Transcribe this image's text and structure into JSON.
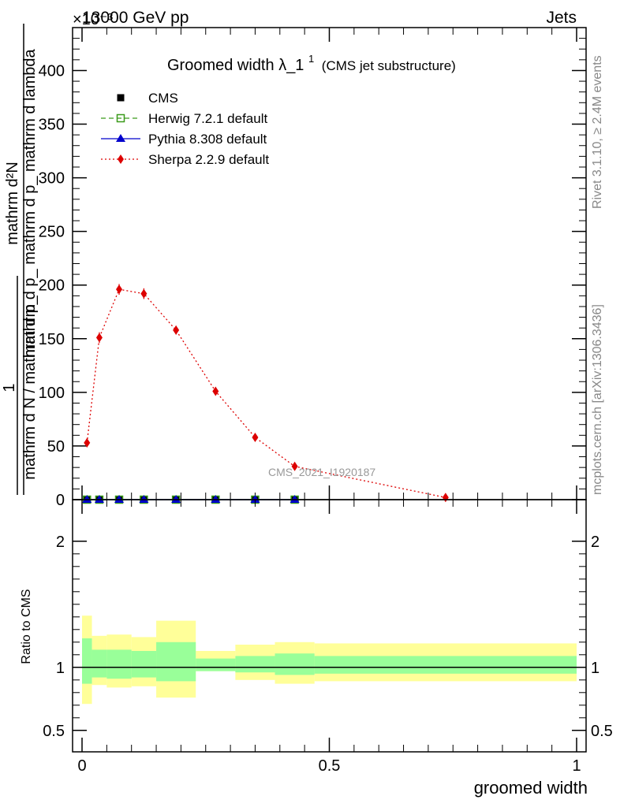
{
  "header": {
    "energy_label": "13000 GeV pp",
    "category_label": "Jets",
    "exponent_label": "×10⁻³"
  },
  "side": {
    "rivet_label": "Rivet 3.1.10, ≥ 2.4M events",
    "mcplots_label": "mcplots.cern.ch [arXiv:1306.3436]"
  },
  "watermark": "CMS_2021_I1920187",
  "colors": {
    "cms": "#000000",
    "herwig": "#3a9a1a",
    "pythia": "#0000cc",
    "sherpa": "#dd0000",
    "band_inner": "#99ff99",
    "band_outer": "#ffff99"
  },
  "chart_data": [
    {
      "type": "scatter",
      "title": "Groomed width",
      "title_symbol": "λ_1",
      "title_sup": "1",
      "title_sub": "(CMS jet substructure)",
      "ylabel_numerator": "mathrm d²N",
      "ylabel_denominator": "mathrm d p_ mathrm d p_ mathrm d lambda",
      "ylabel_fraction_top": "1",
      "ylabel_fraction_bottom": "mathrm d N / mathrm d p_",
      "xlim": [
        0,
        1
      ],
      "ylim": [
        0,
        440
      ],
      "y_multiplier": "×10⁻³",
      "yticks": [
        0,
        50,
        100,
        150,
        200,
        250,
        300,
        350,
        400
      ],
      "legend_position": "top-left",
      "series": [
        {
          "name": "CMS",
          "marker": "square-filled",
          "x": [
            0.01,
            0.035,
            0.075,
            0.125,
            0.19,
            0.27,
            0.35,
            0.43
          ],
          "y": [
            0,
            0,
            0,
            0,
            0,
            0,
            0,
            0
          ]
        },
        {
          "name": "Herwig 7.2.1 default",
          "marker": "square-open",
          "line": "dashed",
          "x": [
            0.01,
            0.035,
            0.075,
            0.125,
            0.19,
            0.27,
            0.35,
            0.43
          ],
          "y": [
            0,
            0,
            0,
            0,
            0,
            0,
            0,
            0
          ]
        },
        {
          "name": "Pythia 8.308 default",
          "marker": "triangle-filled",
          "line": "solid",
          "x": [
            0.01,
            0.035,
            0.075,
            0.125,
            0.19,
            0.27,
            0.35,
            0.43
          ],
          "y": [
            0,
            0,
            0,
            0,
            0,
            0,
            0,
            0
          ]
        },
        {
          "name": "Sherpa 2.2.9 default",
          "marker": "diamond-filled",
          "line": "dotted",
          "x": [
            0.01,
            0.035,
            0.075,
            0.125,
            0.19,
            0.27,
            0.35,
            0.43,
            0.735
          ],
          "y": [
            53,
            151,
            196,
            192,
            158,
            101,
            58,
            31,
            2
          ],
          "err": [
            4,
            5,
            5,
            5,
            4,
            3,
            3,
            2,
            1
          ]
        }
      ]
    },
    {
      "type": "area",
      "ylabel": "Ratio to CMS",
      "xlabel": "groomed width",
      "xlim": [
        0,
        1
      ],
      "ylim": [
        0.33,
        2.33
      ],
      "xticks": [
        0,
        0.5,
        1
      ],
      "xtick_labels": [
        "0",
        "0.5",
        "1"
      ],
      "yticks": [
        0.5,
        1,
        2
      ],
      "ytick_labels": [
        "0.5",
        "1",
        "2"
      ],
      "bins": [
        0,
        0.02,
        0.05,
        0.1,
        0.15,
        0.23,
        0.31,
        0.39,
        0.47,
        1.0
      ],
      "inner_band": [
        [
          0.87,
          1.23
        ],
        [
          0.92,
          1.14
        ],
        [
          0.91,
          1.14
        ],
        [
          0.92,
          1.13
        ],
        [
          0.89,
          1.2
        ],
        [
          0.97,
          1.07
        ],
        [
          0.96,
          1.09
        ],
        [
          0.94,
          1.11
        ],
        [
          0.95,
          1.09
        ]
      ],
      "outer_band": [
        [
          0.71,
          1.41
        ],
        [
          0.86,
          1.25
        ],
        [
          0.84,
          1.26
        ],
        [
          0.85,
          1.24
        ],
        [
          0.76,
          1.37
        ],
        [
          0.97,
          1.13
        ],
        [
          0.9,
          1.18
        ],
        [
          0.87,
          1.2
        ],
        [
          0.89,
          1.19
        ]
      ],
      "reference_value": 1
    }
  ]
}
